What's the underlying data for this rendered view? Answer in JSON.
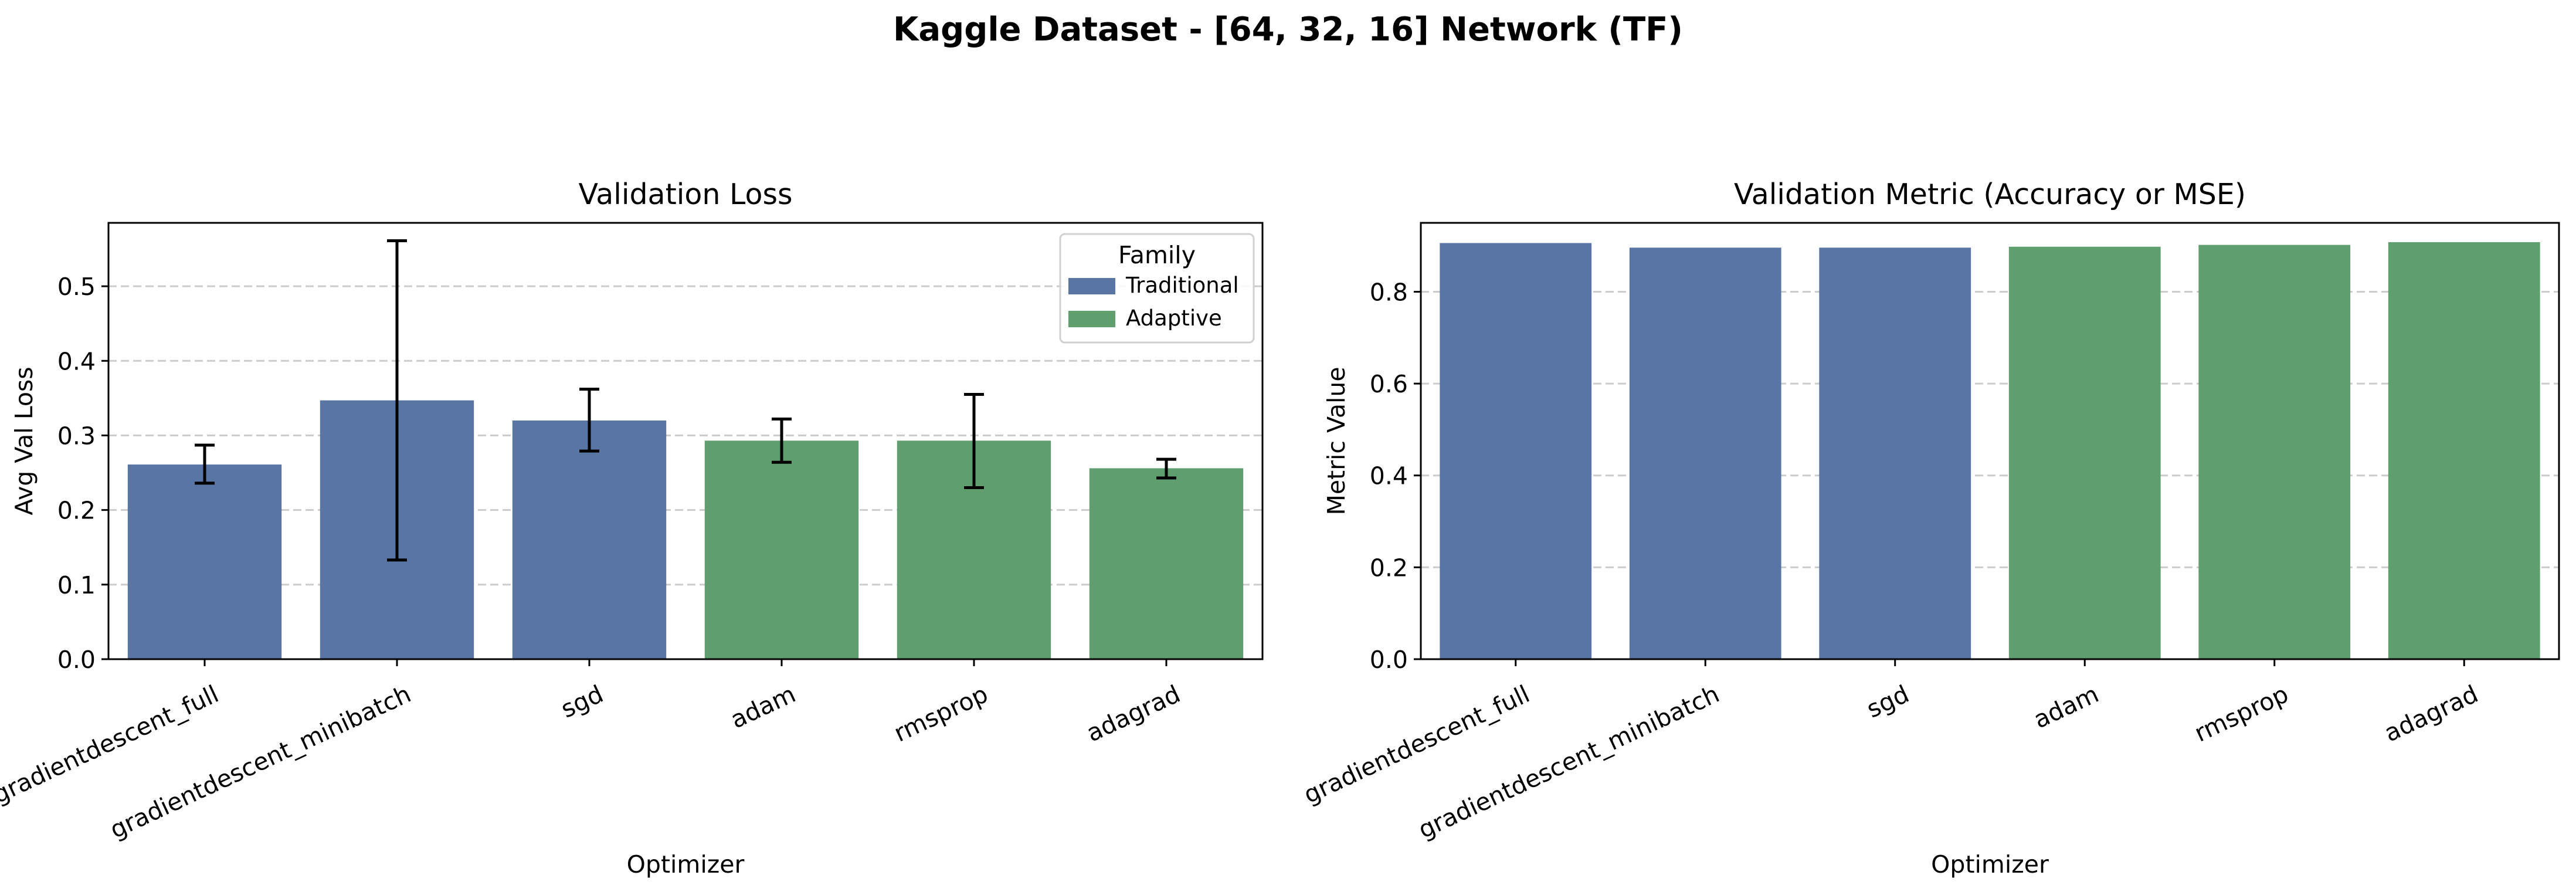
{
  "figure": {
    "title": "Kaggle Dataset - [64, 32, 16] Network (TF)"
  },
  "colors": {
    "Traditional": "#5875a4",
    "Adaptive": "#5f9e6e"
  },
  "chart_data": [
    {
      "type": "bar",
      "title": "Validation Loss",
      "xlabel": "Optimizer",
      "ylabel": "Avg Val Loss",
      "categories": [
        "gradientdescent_full",
        "gradientdescent_minibatch",
        "sgd",
        "adam",
        "rmsprop",
        "adagrad"
      ],
      "values": [
        0.261,
        0.347,
        0.32,
        0.293,
        0.293,
        0.256
      ],
      "error_low": [
        0.236,
        0.133,
        0.279,
        0.264,
        0.23,
        0.243
      ],
      "error_high": [
        0.287,
        0.561,
        0.362,
        0.322,
        0.355,
        0.268
      ],
      "families": [
        "Traditional",
        "Traditional",
        "Traditional",
        "Adaptive",
        "Adaptive",
        "Adaptive"
      ],
      "ylim": [
        0,
        0.585
      ],
      "yticks": [
        0.0,
        0.1,
        0.2,
        0.3,
        0.4,
        0.5
      ],
      "ytick_labels": [
        "0.0",
        "0.1",
        "0.2",
        "0.3",
        "0.4",
        "0.5"
      ],
      "grid": "y-dashed",
      "legend": {
        "title": "Family",
        "placement": "top-right",
        "entries": [
          "Traditional",
          "Adaptive"
        ]
      }
    },
    {
      "type": "bar",
      "title": "Validation Metric (Accuracy or MSE)",
      "xlabel": "Optimizer",
      "ylabel": "Metric Value",
      "categories": [
        "gradientdescent_full",
        "gradientdescent_minibatch",
        "sgd",
        "adam",
        "rmsprop",
        "adagrad"
      ],
      "values": [
        0.906,
        0.896,
        0.896,
        0.898,
        0.902,
        0.908
      ],
      "families": [
        "Traditional",
        "Traditional",
        "Traditional",
        "Adaptive",
        "Adaptive",
        "Adaptive"
      ],
      "ylim": [
        0,
        0.95
      ],
      "yticks": [
        0.0,
        0.2,
        0.4,
        0.6,
        0.8
      ],
      "ytick_labels": [
        "0.0",
        "0.2",
        "0.4",
        "0.6",
        "0.8"
      ],
      "grid": "y-dashed"
    }
  ]
}
